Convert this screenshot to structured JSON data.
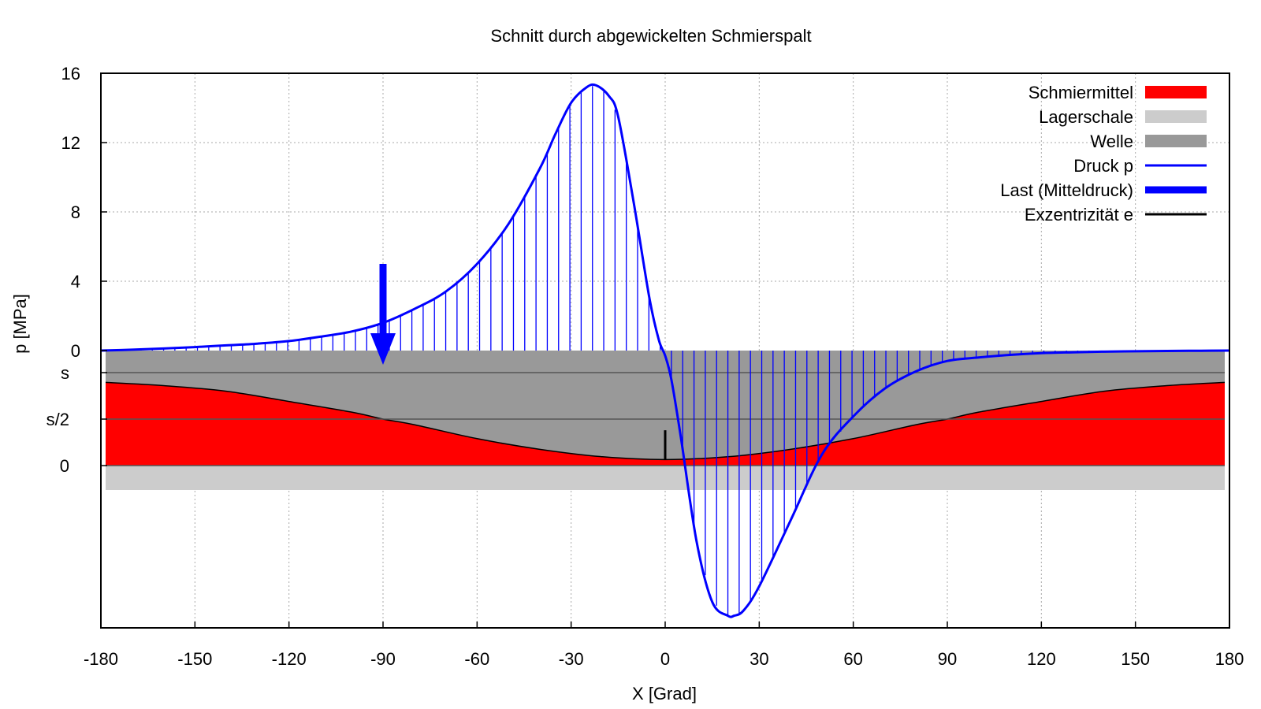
{
  "chart_data": {
    "type": "line",
    "title": "Schnitt durch abgewickelten Schmierspalt",
    "xlabel": "X [Grad]",
    "ylabel": "p [MPa]",
    "xlim": [
      -180,
      180
    ],
    "x_ticks": [
      "-180",
      "-150",
      "-120",
      "-90",
      "-60",
      "-30",
      "0",
      "30",
      "60",
      "90",
      "120",
      "150",
      "180"
    ],
    "pressure_ticks": [
      "0",
      "4",
      "8",
      "12",
      "16"
    ],
    "gap_ticks": [
      "0",
      "s/2",
      "s"
    ],
    "grid": true,
    "legend_position": "top-right",
    "legend": [
      {
        "label": "Schmiermittel",
        "kind": "box",
        "color": "#ff0000"
      },
      {
        "label": "Lagerschale",
        "kind": "box",
        "color": "#cccccc"
      },
      {
        "label": "Welle",
        "kind": "box",
        "color": "#999999"
      },
      {
        "label": "Druck p",
        "kind": "line",
        "color": "#0000ff"
      },
      {
        "label": "Last (Mitteldruck)",
        "kind": "thick",
        "color": "#0000ff"
      },
      {
        "label": "Exzentrizität e",
        "kind": "line",
        "color": "#000000"
      }
    ],
    "pressure_series": {
      "name": "Druck p",
      "unit": "MPa",
      "x": [
        -180,
        -170,
        -160,
        -150,
        -140,
        -130,
        -120,
        -110,
        -100,
        -90,
        -80,
        -70,
        -60,
        -50,
        -40,
        -35,
        -30,
        -25,
        -22,
        -18,
        -15,
        -10,
        -5,
        -2,
        0,
        2,
        5,
        10,
        15,
        20,
        22,
        25,
        30,
        40,
        50,
        60,
        70,
        80,
        90,
        100,
        110,
        120,
        130,
        140,
        150,
        160,
        170,
        180
      ],
      "y": [
        0.0,
        0.05,
        0.12,
        0.2,
        0.3,
        0.4,
        0.55,
        0.8,
        1.1,
        1.6,
        2.4,
        3.4,
        5.0,
        7.3,
        10.5,
        12.5,
        14.3,
        15.2,
        15.3,
        14.7,
        13.5,
        8.5,
        3.0,
        0.6,
        -0.3,
        -1.7,
        -5.0,
        -11.0,
        -14.5,
        -15.3,
        -15.3,
        -15.0,
        -13.6,
        -9.8,
        -6.0,
        -3.8,
        -2.2,
        -1.2,
        -0.6,
        -0.4,
        -0.25,
        -0.15,
        -0.1,
        -0.06,
        -0.04,
        -0.02,
        -0.01,
        0.0
      ]
    },
    "gap_series": {
      "name": "Schmierspalt",
      "unit": "s",
      "x": [
        -180,
        -160,
        -140,
        -120,
        -100,
        -90,
        -80,
        -60,
        -40,
        -20,
        0,
        20,
        40,
        60,
        80,
        90,
        100,
        120,
        140,
        160,
        180
      ],
      "y": [
        0.895,
        0.86,
        0.8,
        0.69,
        0.575,
        0.5,
        0.44,
        0.29,
        0.175,
        0.095,
        0.065,
        0.095,
        0.175,
        0.29,
        0.44,
        0.5,
        0.575,
        0.69,
        0.8,
        0.86,
        0.895
      ]
    },
    "load": {
      "name": "Last (Mitteldruck)",
      "x": -90,
      "value": 5.0
    },
    "eccentricity": {
      "name": "Exzentrizität e",
      "x": 0,
      "from": 0.065,
      "to": 0.38
    }
  }
}
